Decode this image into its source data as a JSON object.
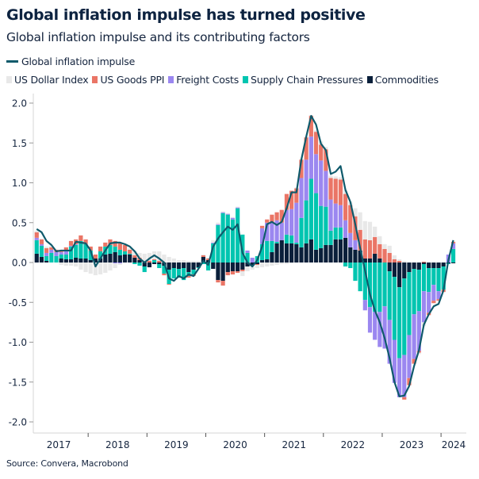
{
  "header": {
    "title": "Global inflation impulse has turned positive",
    "subtitle": "Global inflation impulse and its contributing factors"
  },
  "source": "Source: Convera, Macrobond",
  "chart_data": {
    "type": "bar",
    "stacked": true,
    "title": "Global inflation impulse has turned positive",
    "subtitle": "Global inflation impulse and its contributing factors",
    "xlabel": "",
    "ylabel": "",
    "ylim": [
      -2.0,
      2.0
    ],
    "yticks": [
      "2.0",
      "1.5",
      "1.0",
      "0.5",
      "0.0",
      "-0.5",
      "-1.0",
      "-1.5",
      "-2.0"
    ],
    "xticks": [
      "2017",
      "2018",
      "2019",
      "2020",
      "2021",
      "2022",
      "2023",
      "2024"
    ],
    "grid": false,
    "legend": "top-left",
    "x": [
      "2017-02",
      "2017-03",
      "2017-04",
      "2017-05",
      "2017-06",
      "2017-07",
      "2017-08",
      "2017-09",
      "2017-10",
      "2017-11",
      "2017-12",
      "2018-01",
      "2018-02",
      "2018-03",
      "2018-04",
      "2018-05",
      "2018-06",
      "2018-07",
      "2018-08",
      "2018-09",
      "2018-10",
      "2018-11",
      "2018-12",
      "2019-01",
      "2019-02",
      "2019-03",
      "2019-04",
      "2019-05",
      "2019-06",
      "2019-07",
      "2019-08",
      "2019-09",
      "2019-10",
      "2019-11",
      "2019-12",
      "2020-01",
      "2020-02",
      "2020-03",
      "2020-04",
      "2020-05",
      "2020-06",
      "2020-07",
      "2020-08",
      "2020-09",
      "2020-10",
      "2020-11",
      "2020-12",
      "2021-01",
      "2021-02",
      "2021-03",
      "2021-04",
      "2021-05",
      "2021-06",
      "2021-07",
      "2021-08",
      "2021-09",
      "2021-10",
      "2021-11",
      "2021-12",
      "2022-01",
      "2022-02",
      "2022-03",
      "2022-04",
      "2022-05",
      "2022-06",
      "2022-07",
      "2022-08",
      "2022-09",
      "2022-10",
      "2022-11",
      "2022-12",
      "2023-01",
      "2023-02",
      "2023-03",
      "2023-04",
      "2023-05",
      "2023-06",
      "2023-07",
      "2023-08",
      "2023-09",
      "2023-10",
      "2023-11",
      "2023-12",
      "2024-01",
      "2024-02",
      "2024-03"
    ],
    "line": {
      "name": "Global inflation impulse",
      "color": "#0f5a6b",
      "values": [
        0.42,
        0.38,
        0.27,
        0.22,
        0.14,
        0.15,
        0.15,
        0.15,
        0.26,
        0.25,
        0.24,
        0.15,
        -0.05,
        0.05,
        0.15,
        0.24,
        0.25,
        0.25,
        0.23,
        0.2,
        0.14,
        0.05,
        0.0,
        0.05,
        0.09,
        0.05,
        0.0,
        -0.2,
        -0.23,
        -0.17,
        -0.2,
        -0.15,
        -0.17,
        -0.08,
        0.02,
        -0.03,
        0.2,
        0.3,
        0.38,
        0.45,
        0.41,
        0.48,
        0.12,
        0.0,
        -0.05,
        0.03,
        0.2,
        0.48,
        0.51,
        0.47,
        0.51,
        0.68,
        0.88,
        0.88,
        1.29,
        1.58,
        1.84,
        1.73,
        1.49,
        1.41,
        1.11,
        1.14,
        1.21,
        0.91,
        0.76,
        0.48,
        0.18,
        -0.1,
        -0.4,
        -0.6,
        -0.75,
        -0.95,
        -1.2,
        -1.5,
        -1.68,
        -1.67,
        -1.55,
        -1.3,
        -1.1,
        -0.78,
        -0.65,
        -0.55,
        -0.52,
        -0.35,
        0.03,
        0.28
      ]
    },
    "series": [
      {
        "name": "US Dollar Index",
        "color": "#e8e8e8",
        "values": [
          0.02,
          0.01,
          0.02,
          0.02,
          0,
          -0.03,
          -0.04,
          -0.04,
          -0.05,
          -0.09,
          -0.12,
          -0.14,
          -0.16,
          -0.15,
          -0.13,
          -0.1,
          -0.06,
          -0.02,
          0,
          0.02,
          0.05,
          0.06,
          0.1,
          0.1,
          0.1,
          0.12,
          0.1,
          0.07,
          0.05,
          0.03,
          0.03,
          0.02,
          0.02,
          0.02,
          0.01,
          0.01,
          0.03,
          0.02,
          0.01,
          0.01,
          0.01,
          0.01,
          -0.06,
          -0.06,
          -0.05,
          -0.04,
          -0.06,
          -0.05,
          -0.04,
          -0.03,
          -0.02,
          -0.02,
          -0.01,
          0.01,
          0.01,
          0.01,
          0.01,
          0.02,
          0.04,
          0.03,
          0.03,
          0.03,
          0.03,
          0.05,
          0.04,
          0.1,
          0.22,
          0.23,
          0.23,
          0.13,
          0.1,
          0.06,
          0.09,
          0.05,
          0.02,
          0.02,
          0,
          0,
          -0.02,
          -0.05,
          0,
          0,
          0,
          0,
          0,
          0
        ]
      },
      {
        "name": "US Goods PPI",
        "color": "#ea7566",
        "values": [
          0.07,
          0.06,
          0.06,
          0.03,
          0.03,
          0.03,
          0.05,
          0.06,
          0.06,
          0.07,
          0.06,
          0.05,
          0.05,
          0.06,
          0.05,
          0.07,
          0.07,
          0.09,
          0.08,
          0.05,
          0.03,
          0.03,
          0.01,
          0.02,
          0.01,
          0.02,
          -0.02,
          -0.01,
          0,
          0,
          0,
          -0.02,
          -0.02,
          0,
          0.02,
          0.02,
          0,
          -0.03,
          -0.06,
          -0.04,
          -0.04,
          -0.02,
          -0.02,
          0,
          0,
          -0.01,
          0.03,
          0.04,
          0.09,
          0.1,
          0.16,
          0.2,
          0.23,
          0.18,
          0.23,
          0.28,
          0.26,
          0.28,
          0.2,
          0.27,
          0.27,
          0.31,
          0.32,
          0.33,
          0.35,
          0.3,
          0.26,
          0.24,
          0.23,
          0.21,
          0.18,
          0.17,
          0.12,
          0.04,
          0.02,
          -0.03,
          -0.09,
          -0.06,
          -0.02,
          0.01,
          -0.03,
          -0.03,
          -0.02,
          -0.03,
          0,
          0.02
        ]
      },
      {
        "name": "Freight Costs",
        "color": "#9b87f0",
        "values": [
          0.03,
          0.02,
          0.04,
          0.04,
          0.05,
          0.03,
          0.04,
          0.01,
          0.01,
          0,
          0,
          0,
          0,
          0,
          0,
          0,
          -0.01,
          -0.01,
          0,
          0,
          0,
          0,
          0,
          0,
          0,
          0,
          0,
          0,
          0,
          0,
          0,
          0,
          0,
          0,
          0,
          0,
          0.01,
          0.01,
          0.01,
          0.01,
          0.02,
          0.01,
          0,
          0.03,
          0.06,
          0,
          0.2,
          0.23,
          0.24,
          0.27,
          0.22,
          0.31,
          0.33,
          0.5,
          0.5,
          0.51,
          0.53,
          0.49,
          0.57,
          0.45,
          0.39,
          0.3,
          0.28,
          0.22,
          0.18,
          0.12,
          0,
          -0.13,
          -0.32,
          -0.35,
          -0.44,
          -0.53,
          -0.55,
          -0.54,
          -0.49,
          -0.53,
          -0.54,
          -0.56,
          -0.5,
          -0.39,
          -0.26,
          -0.2,
          -0.1,
          0,
          0.1,
          0.07
        ]
      },
      {
        "name": "Supply Chain Pressures",
        "color": "#00c5b0",
        "values": [
          0.17,
          0.14,
          0.06,
          0.12,
          0.08,
          0.05,
          0.06,
          0.16,
          0.16,
          0.22,
          0.18,
          0.12,
          0,
          0.09,
          0.1,
          0.11,
          0.07,
          0.07,
          0.04,
          0.01,
          -0.02,
          -0.04,
          -0.07,
          0,
          0.03,
          -0.05,
          -0.1,
          -0.18,
          -0.13,
          -0.11,
          -0.15,
          -0.05,
          -0.06,
          -0.01,
          -0.02,
          -0.1,
          0.24,
          0.47,
          0.62,
          0.6,
          0.54,
          0.68,
          0.35,
          0.12,
          0,
          0.08,
          0.2,
          0.23,
          0.14,
          0.02,
          0,
          0.11,
          0.1,
          0.02,
          0.37,
          0.54,
          0.76,
          0.71,
          0.53,
          0.48,
          0.18,
          0.15,
          0.15,
          -0.05,
          -0.07,
          -0.23,
          -0.36,
          -0.47,
          -0.56,
          -0.62,
          -0.62,
          -0.55,
          -0.61,
          -0.79,
          -0.89,
          -0.96,
          -0.79,
          -0.57,
          -0.52,
          -0.34,
          -0.3,
          -0.21,
          -0.29,
          -0.29,
          -0.01,
          0.17
        ]
      },
      {
        "name": "Commodities",
        "color": "#0a1f3a",
        "values": [
          0.11,
          0.07,
          0.02,
          0,
          0,
          0.05,
          0.04,
          0.04,
          0.06,
          0.05,
          0.05,
          0.03,
          0.05,
          0.05,
          0.1,
          0.11,
          0.13,
          0.09,
          0.1,
          0.1,
          0.06,
          0.03,
          -0.05,
          -0.06,
          -0.02,
          -0.02,
          -0.04,
          -0.09,
          -0.07,
          -0.08,
          -0.07,
          -0.12,
          -0.09,
          -0.06,
          0.07,
          0.03,
          -0.08,
          -0.22,
          -0.23,
          -0.12,
          -0.11,
          -0.11,
          -0.09,
          -0.05,
          -0.04,
          -0.02,
          0.03,
          0.04,
          0.13,
          0.24,
          0.28,
          0.24,
          0.24,
          0.23,
          0.19,
          0.24,
          0.29,
          0.16,
          0.18,
          0.22,
          0.22,
          0.29,
          0.29,
          0.31,
          0.19,
          0.16,
          0.15,
          0.05,
          0.05,
          0.11,
          0.05,
          0,
          -0.11,
          -0.18,
          -0.31,
          -0.2,
          -0.12,
          -0.08,
          -0.09,
          -0.02,
          -0.07,
          -0.07,
          -0.07,
          -0.05,
          -0.01,
          -0.01
        ]
      }
    ]
  }
}
